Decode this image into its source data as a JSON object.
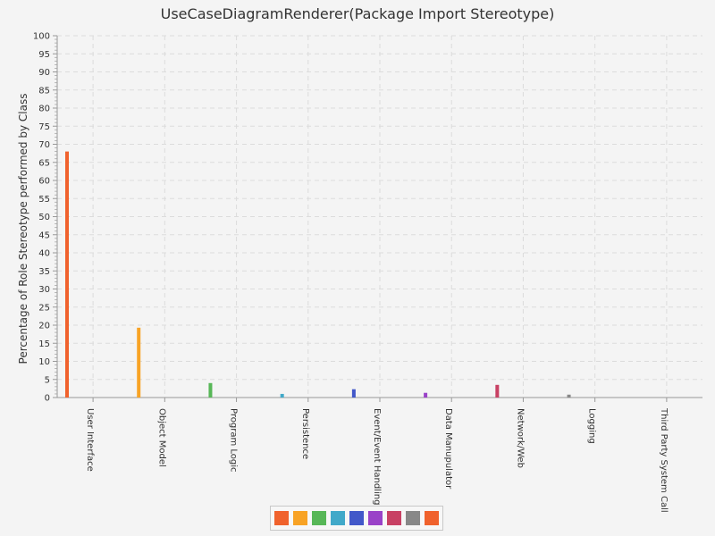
{
  "chart_data": {
    "type": "bar",
    "title": "UseCaseDiagramRenderer(Package Import Stereotype)",
    "xlabel": "",
    "ylabel": "Percentage of Role Stereotype performed by Class",
    "ylim": [
      0,
      100
    ],
    "y_major_step": 5,
    "grid": true,
    "legend_placement": "bottom",
    "categories": [
      "User Interface",
      "Object Model",
      "Program Logic",
      "Persistence",
      "Event/Event Handling",
      "Data Manupulator",
      "Network/Web",
      "Logging",
      "Third Party System Call"
    ],
    "values": [
      68,
      19.3,
      4,
      1,
      2.3,
      1.3,
      3.5,
      0.8,
      0
    ],
    "colors": [
      "#f0622d",
      "#f8a325",
      "#57b757",
      "#41a9c9",
      "#4258c9",
      "#9a42c8",
      "#c84164",
      "#888888",
      "#f0622d"
    ]
  }
}
